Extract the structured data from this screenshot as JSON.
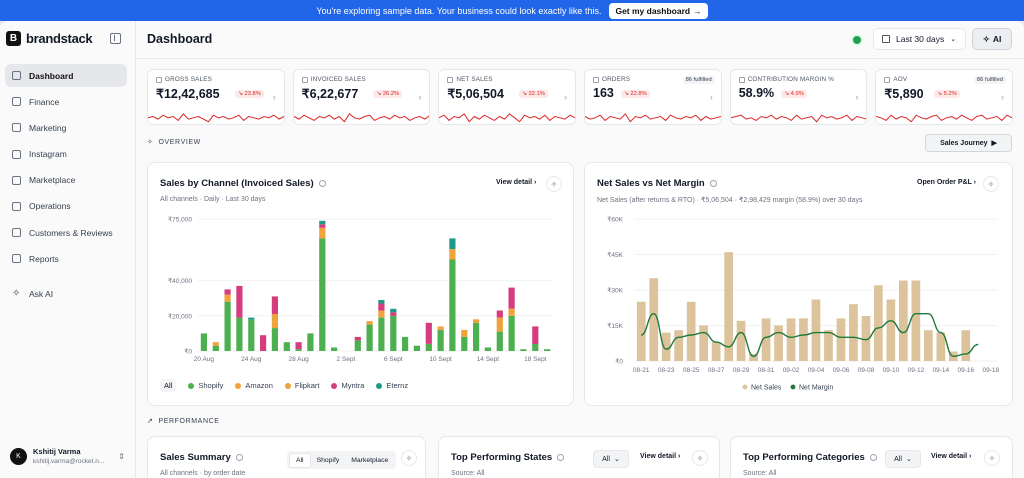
{
  "banner": {
    "message": "You're exploring sample data. Your business could look exactly like this.",
    "cta": "Get my dashboard"
  },
  "brand": {
    "logo_letter": "B",
    "name": "brandstack"
  },
  "sidebar": {
    "items": [
      {
        "label": "Dashboard",
        "icon": "grid-icon",
        "active": true
      },
      {
        "label": "Finance",
        "icon": "wallet-icon"
      },
      {
        "label": "Marketing",
        "icon": "megaphone-icon"
      },
      {
        "label": "Instagram",
        "icon": "instagram-icon"
      },
      {
        "label": "Marketplace",
        "icon": "store-icon"
      },
      {
        "label": "Operations",
        "icon": "truck-icon"
      },
      {
        "label": "Customers & Reviews",
        "icon": "users-icon"
      },
      {
        "label": "Reports",
        "icon": "file-icon"
      }
    ],
    "ask_ai": "Ask AI"
  },
  "user": {
    "initial": "K",
    "name": "Kshitij Varma",
    "email": "kshitij.varma@rocket.n..."
  },
  "header": {
    "title": "Dashboard",
    "date_range": "Last 30 days",
    "ai_label": "AI"
  },
  "kpis": [
    {
      "label": "GROSS SALES",
      "value": "₹12,42,685",
      "delta": "↘ 23.8%"
    },
    {
      "label": "INVOICED SALES",
      "value": "₹6,22,677",
      "delta": "↘ 26.2%"
    },
    {
      "label": "NET SALES",
      "value": "₹5,06,504",
      "delta": "↘ 32.1%"
    },
    {
      "label": "ORDERS",
      "value": "163",
      "delta": "↘ 22.8%",
      "fulfilled": "86 fulfilled"
    },
    {
      "label": "CONTRIBUTION MARGIN %",
      "value": "58.9%",
      "delta": "↘ 4.9%"
    },
    {
      "label": "AOV",
      "value": "₹5,890",
      "delta": "↘ 5.2%",
      "fulfilled": "86 fulfilled"
    }
  ],
  "sections": {
    "overview": "OVERVIEW",
    "performance": "PERFORMANCE",
    "sales_journey": "Sales Journey"
  },
  "colors": {
    "shopify": "#4caf50",
    "amazon": "#f0a23b",
    "flipkart": "#e8a33c",
    "myntra": "#d63d7e",
    "eternz": "#1f9a8a",
    "net_sales": "#dcc39b",
    "net_margin": "#1e7a3c",
    "accent": "#2166e8",
    "negative": "#dc2626"
  },
  "sales_by_channel": {
    "title": "Sales by Channel (Invoiced Sales)",
    "subtitle": "All channels · Daily · Last 30 days",
    "action": "View detail",
    "legend_all": "All",
    "legend": [
      "Shopify",
      "Amazon",
      "Flipkart",
      "Myntra",
      "Eternz"
    ]
  },
  "net_sales_card": {
    "title": "Net Sales vs Net Margin",
    "subtitle": "Net Sales (after returns & RTO) · ₹5,06,504 · ₹2,98,429 margin (58.9%) over 30 days",
    "action": "Open Order P&L"
  },
  "bottom": {
    "sales_summary": {
      "title": "Sales Summary",
      "subtitle": "All channels · by order date",
      "tabs": [
        "All",
        "Shopify",
        "Marketplace"
      ]
    },
    "top_states": {
      "title": "Top Performing States",
      "subtitle": "Source: All",
      "filter": "All",
      "action": "View detail"
    },
    "top_categories": {
      "title": "Top Performing Categories",
      "subtitle": "Source: All",
      "filter": "All",
      "action": "View detail"
    }
  },
  "chart_data": [
    {
      "type": "bar",
      "title": "Sales by Channel (Invoiced Sales)",
      "ylim": [
        0,
        75000
      ],
      "yticks": [
        "₹75,000",
        "₹40,000",
        "₹20,000",
        "₹0"
      ],
      "ytick_values": [
        75000,
        40000,
        20000,
        0
      ],
      "xticks": [
        "20 Aug",
        "24 Aug",
        "28 Aug",
        "2 Sept",
        "6 Sept",
        "10 Sept",
        "14 Sept",
        "18 Sept"
      ],
      "xtick_index": [
        0,
        4,
        8,
        12,
        16,
        20,
        24,
        28
      ],
      "categories": [
        "20 Aug",
        "21 Aug",
        "22 Aug",
        "23 Aug",
        "24 Aug",
        "25 Aug",
        "26 Aug",
        "27 Aug",
        "28 Aug",
        "29 Aug",
        "30 Aug",
        "31 Aug",
        "1 Sept",
        "2 Sept",
        "3 Sept",
        "4 Sept",
        "5 Sept",
        "6 Sept",
        "7 Sept",
        "8 Sept",
        "9 Sept",
        "10 Sept",
        "11 Sept",
        "12 Sept",
        "13 Sept",
        "14 Sept",
        "15 Sept",
        "16 Sept",
        "17 Sept",
        "18 Sept"
      ],
      "series": [
        {
          "name": "Shopify",
          "values": [
            10000,
            3000,
            28000,
            19000,
            18000,
            0,
            13000,
            5000,
            1000,
            10000,
            64000,
            2000,
            0,
            6000,
            15000,
            19000,
            20000,
            8000,
            3000,
            4000,
            12000,
            52000,
            8000,
            16000,
            2000,
            11000,
            20000,
            1000,
            4000,
            1000
          ]
        },
        {
          "name": "Amazon",
          "values": [
            0,
            2000,
            4000,
            0,
            0,
            0,
            4000,
            0,
            0,
            0,
            6000,
            0,
            0,
            0,
            2000,
            4000,
            0,
            0,
            0,
            0,
            2000,
            6000,
            4000,
            2000,
            0,
            8000,
            4000,
            0,
            0,
            0
          ]
        },
        {
          "name": "Flipkart",
          "values": [
            0,
            0,
            0,
            0,
            0,
            0,
            4000,
            0,
            0,
            0,
            0,
            0,
            0,
            0,
            0,
            0,
            0,
            0,
            0,
            0,
            0,
            0,
            0,
            0,
            0,
            0,
            0,
            0,
            0,
            0
          ]
        },
        {
          "name": "Myntra",
          "values": [
            0,
            0,
            3000,
            18000,
            0,
            9000,
            10000,
            0,
            4000,
            0,
            2000,
            0,
            0,
            2000,
            0,
            4000,
            2000,
            0,
            0,
            12000,
            0,
            0,
            0,
            0,
            0,
            4000,
            12000,
            0,
            10000,
            0
          ]
        },
        {
          "name": "Eternz",
          "values": [
            0,
            0,
            0,
            0,
            1000,
            0,
            0,
            0,
            0,
            0,
            2000,
            0,
            0,
            0,
            0,
            2000,
            2000,
            0,
            0,
            0,
            0,
            6000,
            0,
            0,
            0,
            0,
            0,
            0,
            0,
            0
          ]
        }
      ]
    },
    {
      "type": "bar",
      "title": "Net Sales vs Net Margin",
      "ylim": [
        0,
        60000
      ],
      "yticks": [
        "₹60K",
        "₹45K",
        "₹30K",
        "₹15K",
        "₹0"
      ],
      "ytick_values": [
        60000,
        45000,
        30000,
        15000,
        0
      ],
      "categories": [
        "08-21",
        "08-22",
        "08-23",
        "08-24",
        "08-25",
        "08-26",
        "08-27",
        "08-28",
        "08-29",
        "08-30",
        "08-31",
        "09-01",
        "09-02",
        "09-03",
        "09-04",
        "09-05",
        "09-06",
        "09-07",
        "09-08",
        "09-09",
        "09-10",
        "09-11",
        "09-12",
        "09-13",
        "09-14",
        "09-15",
        "09-16",
        "09-17",
        "09-18"
      ],
      "xticks": [
        "08-21",
        "08-23",
        "08-25",
        "08-27",
        "08-29",
        "08-31",
        "09-02",
        "09-04",
        "09-06",
        "09-08",
        "09-10",
        "09-12",
        "09-14",
        "09-16",
        "09-18"
      ],
      "xtick_index": [
        0,
        2,
        4,
        6,
        8,
        10,
        12,
        14,
        16,
        18,
        20,
        22,
        24,
        26,
        28
      ],
      "series": [
        {
          "name": "Net Sales",
          "type": "bar",
          "values": [
            25000,
            35000,
            12000,
            13000,
            25000,
            15000,
            8000,
            46000,
            17000,
            3000,
            18000,
            15000,
            18000,
            18000,
            26000,
            13000,
            18000,
            24000,
            19000,
            32000,
            26000,
            34000,
            34000,
            13000,
            12000,
            4000,
            13000,
            0,
            0
          ]
        },
        {
          "name": "Net Margin",
          "type": "line",
          "values": [
            11000,
            20000,
            5000,
            10000,
            11000,
            12000,
            8000,
            6000,
            12000,
            2000,
            10000,
            12000,
            10000,
            11000,
            12000,
            12000,
            10000,
            10000,
            9000,
            14000,
            17000,
            12000,
            20000,
            20000,
            12000,
            2000,
            3000,
            7000,
            0
          ]
        }
      ],
      "legend": [
        "Net Sales",
        "Net Margin"
      ]
    }
  ]
}
